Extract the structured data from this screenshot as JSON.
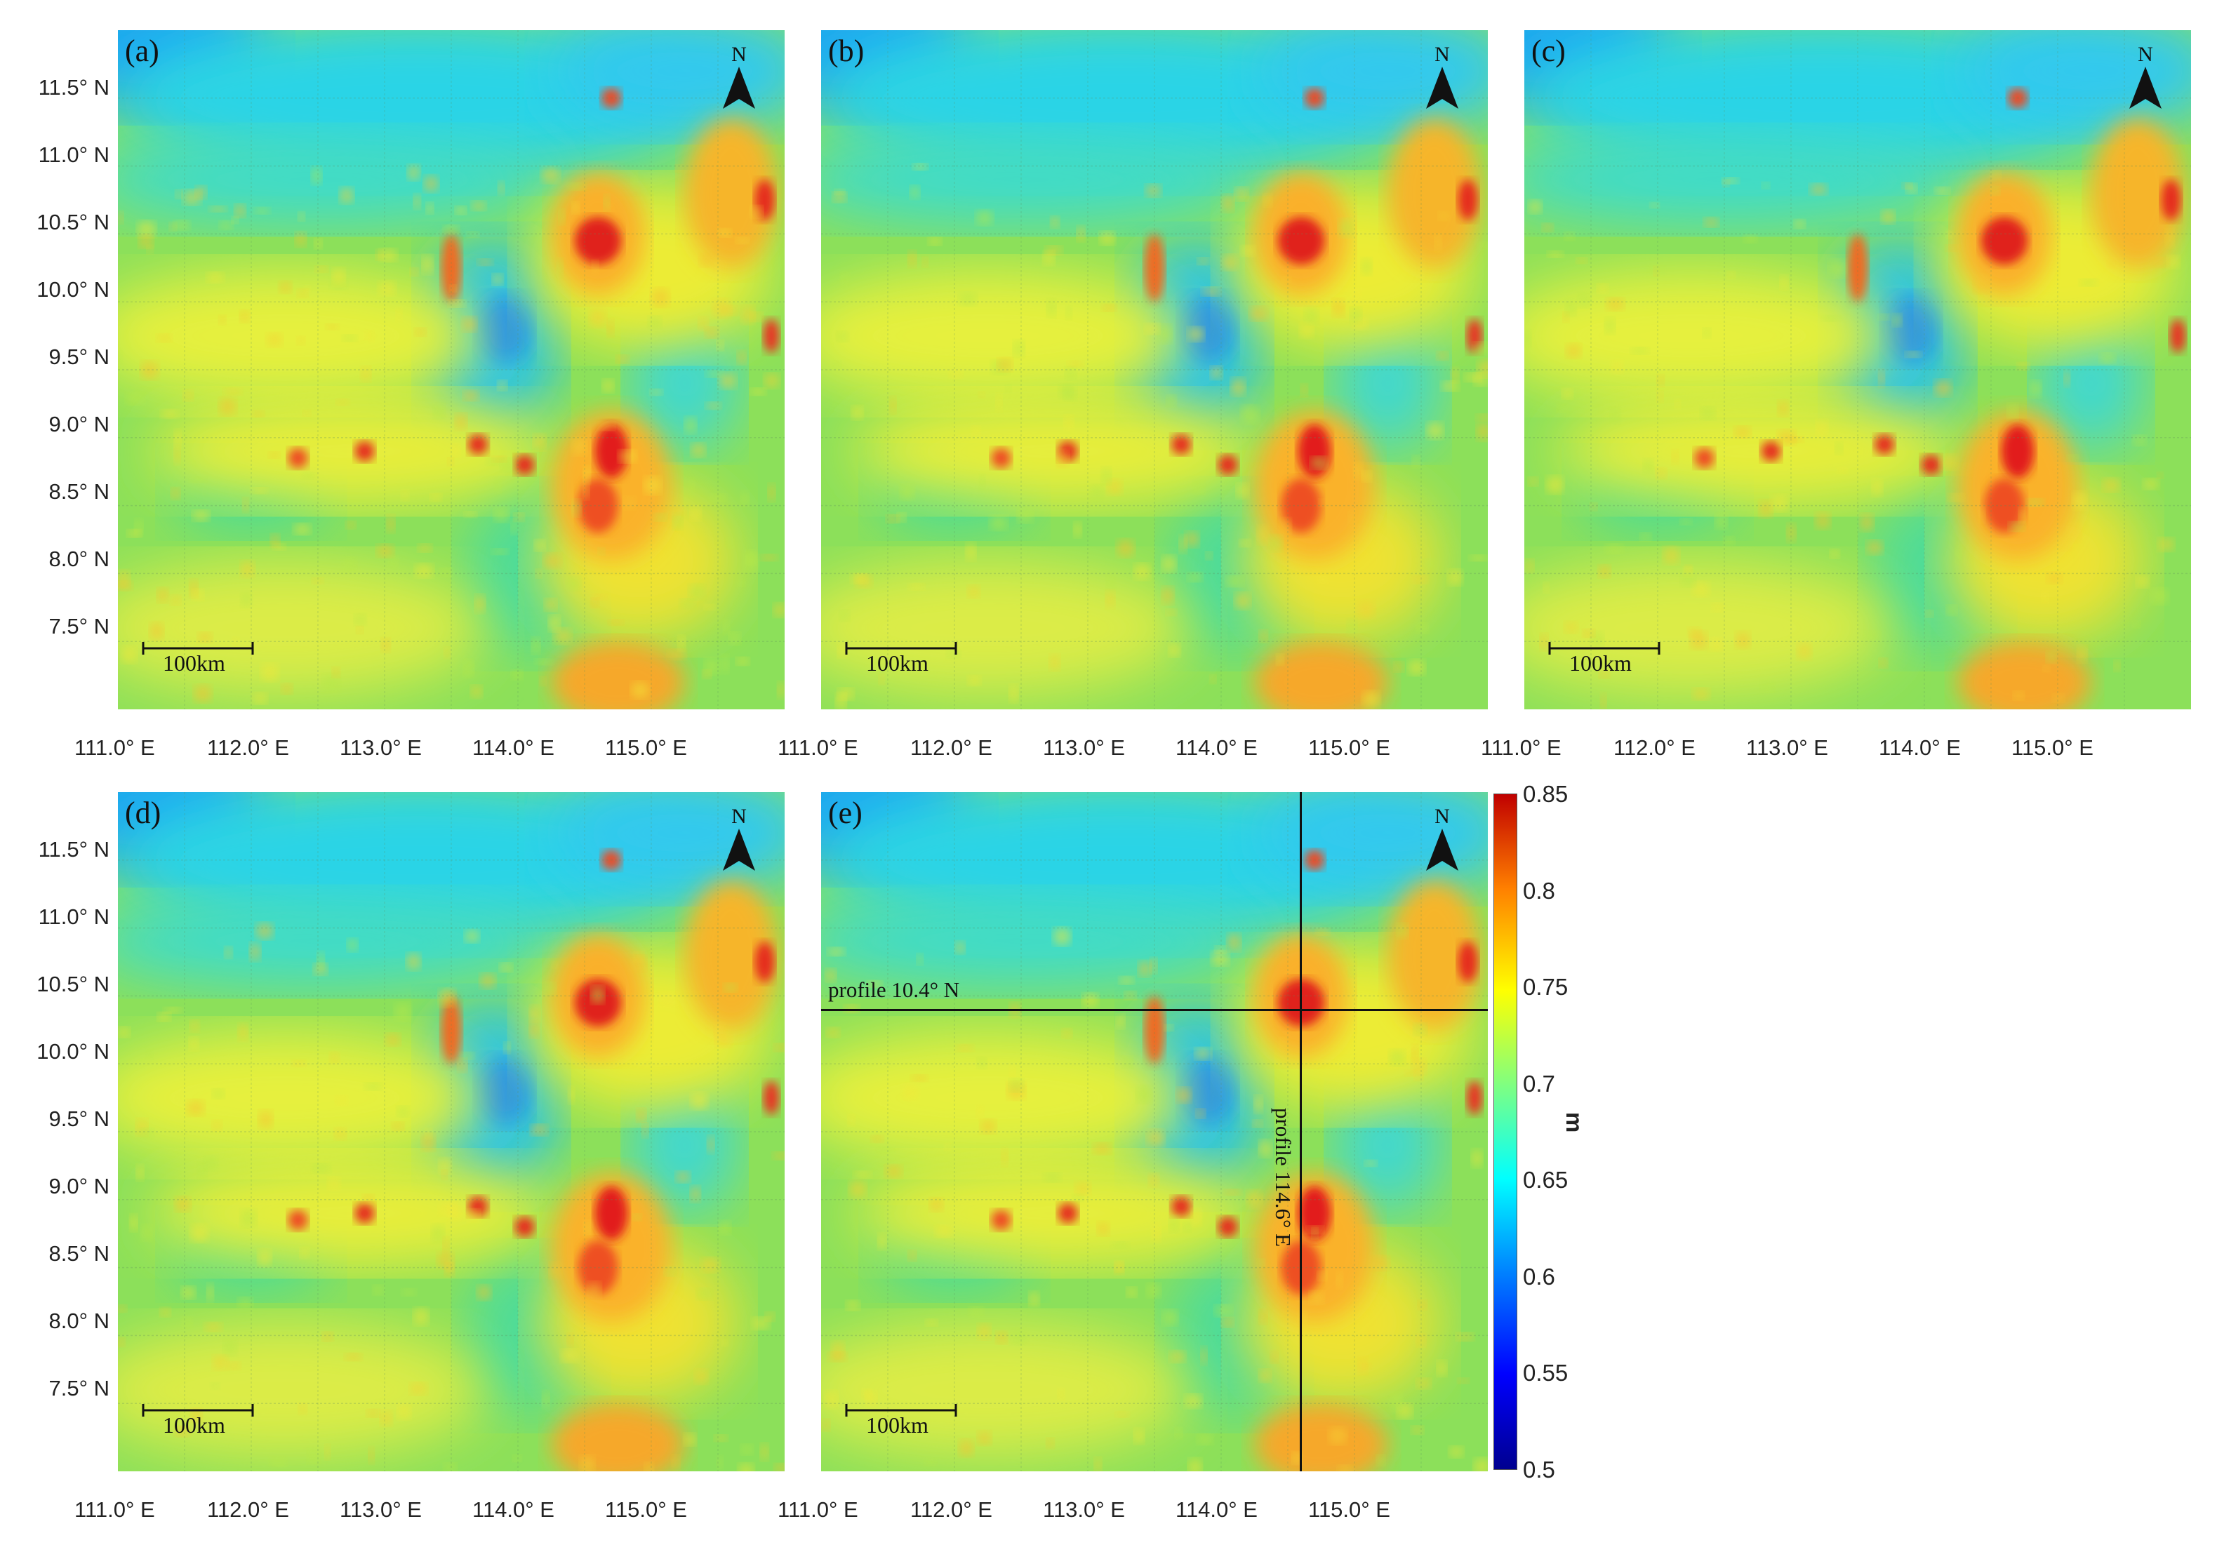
{
  "panels": [
    {
      "id": "a",
      "label": "(a)",
      "scalebar": "100km",
      "north": "N"
    },
    {
      "id": "b",
      "label": "(b)",
      "scalebar": "100km",
      "north": "N"
    },
    {
      "id": "c",
      "label": "(c)",
      "scalebar": "100km",
      "north": "N"
    },
    {
      "id": "d",
      "label": "(d)",
      "scalebar": "100km",
      "north": "N"
    },
    {
      "id": "e",
      "label": "(e)",
      "scalebar": "100km",
      "north": "N"
    }
  ],
  "lat_labels": [
    "11.5° N",
    "11.0° N",
    "10.5° N",
    "10.0° N",
    "9.5° N",
    "9.0° N",
    "8.5° N",
    "8.0° N",
    "7.5° N"
  ],
  "lon_labels": [
    "111.0° E",
    "112.0° E",
    "113.0° E",
    "114.0° E",
    "115.0° E"
  ],
  "profiles": {
    "horizontal": "profile 10.4° N",
    "vertical": "profile 114.6° E"
  },
  "colorbar": {
    "ticks": [
      "0.85",
      "0.8",
      "0.75",
      "0.7",
      "0.65",
      "0.6",
      "0.55",
      "0.5"
    ],
    "unit": "m",
    "min": 0.5,
    "max": 0.85,
    "colors": [
      "#00008f",
      "#0000ff",
      "#0080ff",
      "#00ffff",
      "#80ff80",
      "#ffff00",
      "#ff8000",
      "#c00000"
    ]
  }
}
